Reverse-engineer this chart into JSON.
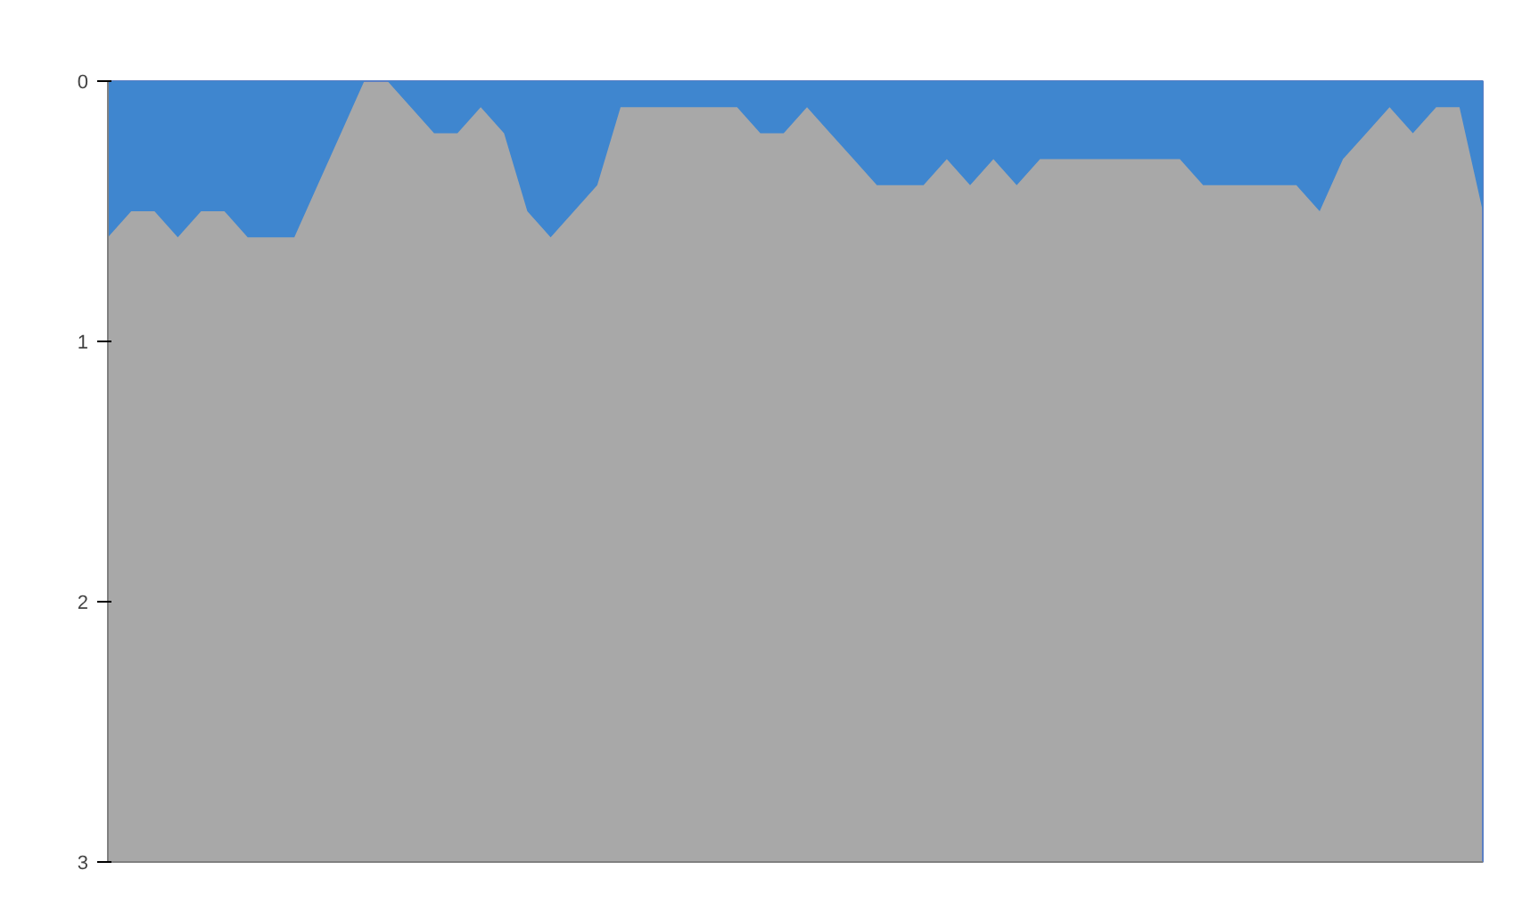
{
  "chart_data": {
    "type": "area",
    "categories": [
      null,
      null,
      null,
      null,
      null,
      null,
      null,
      null,
      null,
      null,
      null,
      null,
      null,
      null,
      null,
      null,
      null,
      null,
      null,
      null,
      null,
      null,
      null,
      null,
      null,
      null,
      null,
      null,
      null,
      null,
      null,
      null,
      null,
      null,
      null,
      null,
      null,
      null,
      null,
      null,
      null,
      null,
      null,
      null,
      null,
      null,
      null,
      null,
      null,
      null,
      null,
      null,
      null,
      null,
      null,
      null,
      null,
      null,
      null,
      null
    ],
    "series": [
      {
        "color": "#3f86cf",
        "values": [
          0.6,
          0.5,
          0.5,
          0.6,
          0.5,
          0.5,
          0.6,
          0.6,
          0.6,
          0.4,
          0.2,
          0.0,
          0.0,
          0.1,
          0.2,
          0.2,
          0.1,
          0.2,
          0.5,
          0.6,
          0.5,
          0.4,
          0.1,
          0.1,
          0.1,
          0.1,
          0.1,
          0.1,
          0.2,
          0.2,
          0.1,
          0.2,
          0.3,
          0.4,
          0.4,
          0.4,
          0.3,
          0.4,
          0.3,
          0.4,
          0.3,
          0.3,
          0.3,
          0.3,
          0.3,
          0.3,
          0.3,
          0.4,
          0.4,
          0.4,
          0.4,
          0.4,
          0.5,
          0.3,
          0.2,
          0.1,
          0.2,
          0.1,
          0.1,
          0.5
        ]
      }
    ],
    "ylim": [
      3,
      0
    ],
    "yticks": [
      0,
      1,
      2,
      3
    ],
    "grid": false,
    "tick_labels": "y"
  }
}
